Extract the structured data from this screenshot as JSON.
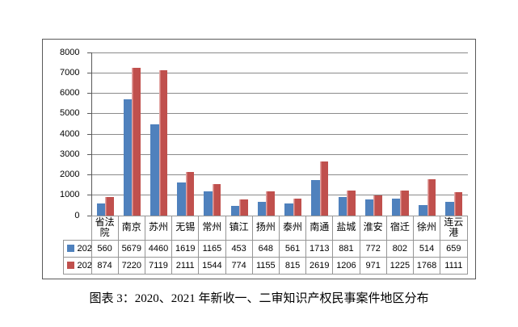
{
  "caption": "图表 3：2020、2021 年新收一、二审知识产权民事案件地区分布",
  "chart_data": {
    "type": "bar",
    "title": "",
    "xlabel": "",
    "ylabel": "",
    "categories": [
      "省法院",
      "南京",
      "苏州",
      "无锡",
      "常州",
      "镇江",
      "扬州",
      "泰州",
      "南通",
      "盐城",
      "淮安",
      "宿迁",
      "徐州",
      "连云港"
    ],
    "series": [
      {
        "name": "2020",
        "color": "#4F81BD",
        "values": [
          560,
          5679,
          4460,
          1619,
          1165,
          453,
          648,
          561,
          1713,
          881,
          772,
          802,
          514,
          659
        ]
      },
      {
        "name": "2021",
        "color": "#C0504D",
        "values": [
          874,
          7220,
          7119,
          2111,
          1544,
          774,
          1155,
          815,
          2619,
          1206,
          971,
          1225,
          1768,
          1111
        ]
      }
    ],
    "ylim": [
      0,
      8000
    ],
    "ytick_step": 1000,
    "yticks_top_to_bottom": [
      "8000",
      "7000",
      "6000",
      "5000",
      "4000",
      "3000",
      "2000",
      "1000",
      "0"
    ],
    "grid": true,
    "legend_position": "data-table-row-headers",
    "legend": [
      "2020",
      "2021"
    ]
  }
}
